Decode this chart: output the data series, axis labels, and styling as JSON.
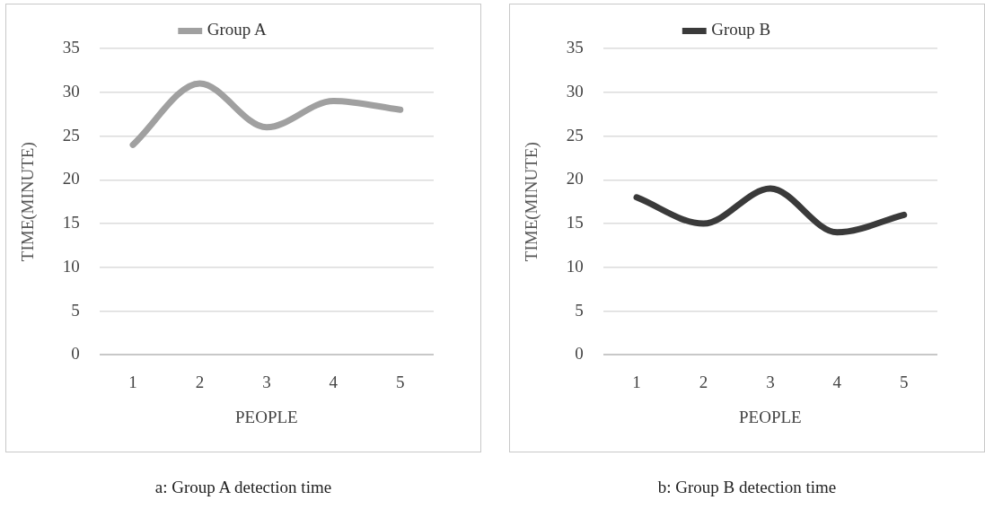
{
  "chart_data": [
    {
      "type": "line",
      "categories": [
        "1",
        "2",
        "3",
        "4",
        "5"
      ],
      "series": [
        {
          "name": "Group A",
          "color": "#a0a0a0",
          "values": [
            24,
            31,
            26,
            29,
            28
          ]
        }
      ],
      "xlabel": "PEOPLE",
      "ylabel": "TIME(MINUTE)",
      "ylim": [
        0,
        35
      ],
      "yticks": [
        0,
        5,
        10,
        15,
        20,
        25,
        30,
        35
      ],
      "grid": "y",
      "legend": "top",
      "marker": "none",
      "line_style": "solid",
      "annotations": [
        "a: Group A detection time"
      ]
    },
    {
      "type": "line",
      "categories": [
        "1",
        "2",
        "3",
        "4",
        "5"
      ],
      "series": [
        {
          "name": "Group B",
          "color": "#3a3a3a",
          "values": [
            18,
            15,
            19,
            14,
            16
          ]
        }
      ],
      "xlabel": "PEOPLE",
      "ylabel": "TIME(MINUTE)",
      "ylim": [
        0,
        35
      ],
      "yticks": [
        0,
        5,
        10,
        15,
        20,
        25,
        30,
        35
      ],
      "grid": "y",
      "legend": "top",
      "marker": "none",
      "line_style": "solid",
      "annotations": [
        "b: Group B detection time"
      ]
    }
  ]
}
